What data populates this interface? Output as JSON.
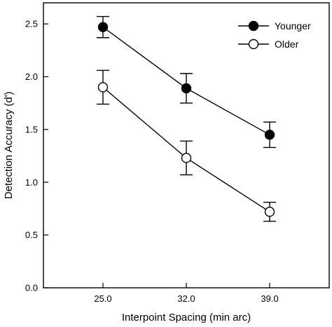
{
  "chart_data": {
    "type": "line",
    "xlabel": "Interpoint Spacing (min arc)",
    "ylabel": "Detection Accuracy (d')",
    "categories": [
      "25.0",
      "32.0",
      "39.0"
    ],
    "x": [
      25.0,
      32.0,
      39.0
    ],
    "xlim": [
      20.0,
      44.0
    ],
    "ylim": [
      0.0,
      2.7
    ],
    "yticks": [
      "0.0",
      "0.5",
      "1.0",
      "1.5",
      "2.0",
      "2.5"
    ],
    "grid": false,
    "legend_position": "top-right",
    "series": [
      {
        "name": "Younger",
        "marker": "filled-circle",
        "color": "#000000",
        "values": [
          2.47,
          1.89,
          1.45
        ],
        "error": [
          0.1,
          0.14,
          0.12
        ]
      },
      {
        "name": "Older",
        "marker": "open-circle",
        "color": "#000000",
        "values": [
          1.9,
          1.23,
          0.72
        ],
        "error": [
          0.16,
          0.16,
          0.09
        ]
      }
    ]
  }
}
